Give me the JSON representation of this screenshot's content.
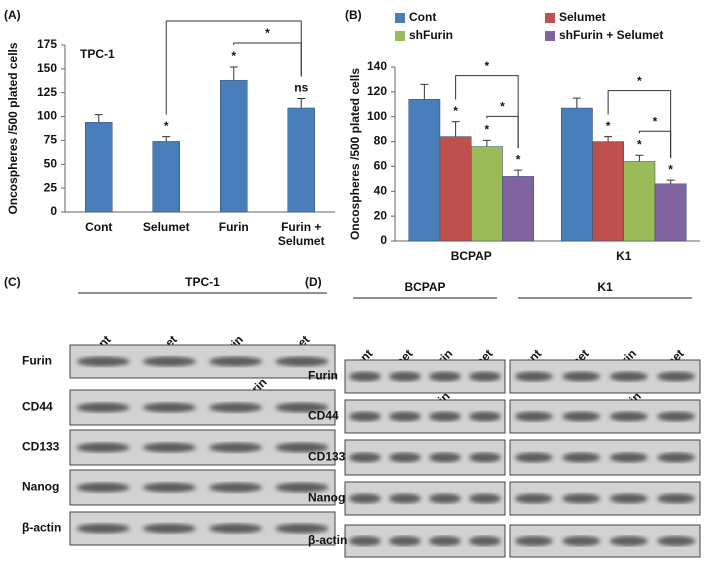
{
  "chart_data": [
    {
      "type": "bar",
      "panel": "(A)",
      "annotation": "TPC-1",
      "y_label": "Oncospheres /500 plated cells",
      "categories": [
        "Cont",
        "Selumet",
        "Furin",
        "Furin + Selumet"
      ],
      "values": [
        94,
        74,
        138,
        109
      ],
      "errors": [
        8,
        5,
        14,
        10
      ],
      "color": "#4a7ebb",
      "bar_annotations": [
        null,
        "*",
        "*",
        "ns"
      ],
      "brackets": [
        {
          "from": 2,
          "to": 3,
          "label": "*"
        },
        {
          "from": 1,
          "to": 3
        }
      ],
      "ylim": [
        0,
        175
      ],
      "yticks": [
        0,
        25,
        50,
        75,
        100,
        125,
        150,
        175
      ]
    },
    {
      "type": "bar",
      "panel": "(B)",
      "y_label": "Oncospheres /500 plated cells",
      "categories": [
        "BCPAP",
        "K1"
      ],
      "series": [
        {
          "name": "Cont",
          "color": "#4a7ebb",
          "values": [
            114,
            107
          ],
          "errors": [
            12,
            8
          ],
          "bar_annotations": [
            null,
            null
          ]
        },
        {
          "name": "Selumet",
          "color": "#c0504d",
          "values": [
            84,
            80
          ],
          "errors": [
            12,
            4
          ],
          "bar_annotations": [
            "*",
            "*"
          ]
        },
        {
          "name": "shFurin",
          "color": "#9bbb59",
          "values": [
            76,
            64
          ],
          "errors": [
            5,
            5
          ],
          "bar_annotations": [
            "*",
            "*"
          ]
        },
        {
          "name": "shFurin + Selumet",
          "color": "#8064a2",
          "values": [
            52,
            46
          ],
          "errors": [
            5,
            3
          ],
          "bar_annotations": [
            "*",
            "*"
          ]
        }
      ],
      "brackets": [
        {
          "category": 0,
          "from": 2,
          "to": 3,
          "label": "*"
        },
        {
          "category": 0,
          "from": 1,
          "to": 3,
          "label": "*"
        },
        {
          "category": 1,
          "from": 2,
          "to": 3,
          "label": "*"
        },
        {
          "category": 1,
          "from": 1,
          "to": 3,
          "label": "*"
        }
      ],
      "ylim": [
        0,
        140
      ],
      "yticks": [
        0,
        20,
        40,
        60,
        80,
        100,
        120,
        140
      ]
    }
  ],
  "blots": [
    {
      "panel": "(C)",
      "groups": [
        {
          "title": "TPC-1",
          "lanes": [
            "Cont",
            "Selumet",
            "Furin",
            "Furin + Selumet"
          ]
        }
      ],
      "rows": [
        "Furin",
        "CD44",
        "CD133",
        "Nanog",
        "β-actin"
      ]
    },
    {
      "panel": "(D)",
      "groups": [
        {
          "title": "BCPAP",
          "lanes": [
            "Cont",
            "Selumet",
            "shFurin",
            "shFurin + Selumet"
          ]
        },
        {
          "title": "K1",
          "lanes": [
            "Cont",
            "Selumet",
            "shFurin",
            "shFurin + Selumet"
          ]
        }
      ],
      "rows": [
        "Furin",
        "CD44",
        "CD133",
        "Nanog",
        "β-actin"
      ]
    }
  ]
}
